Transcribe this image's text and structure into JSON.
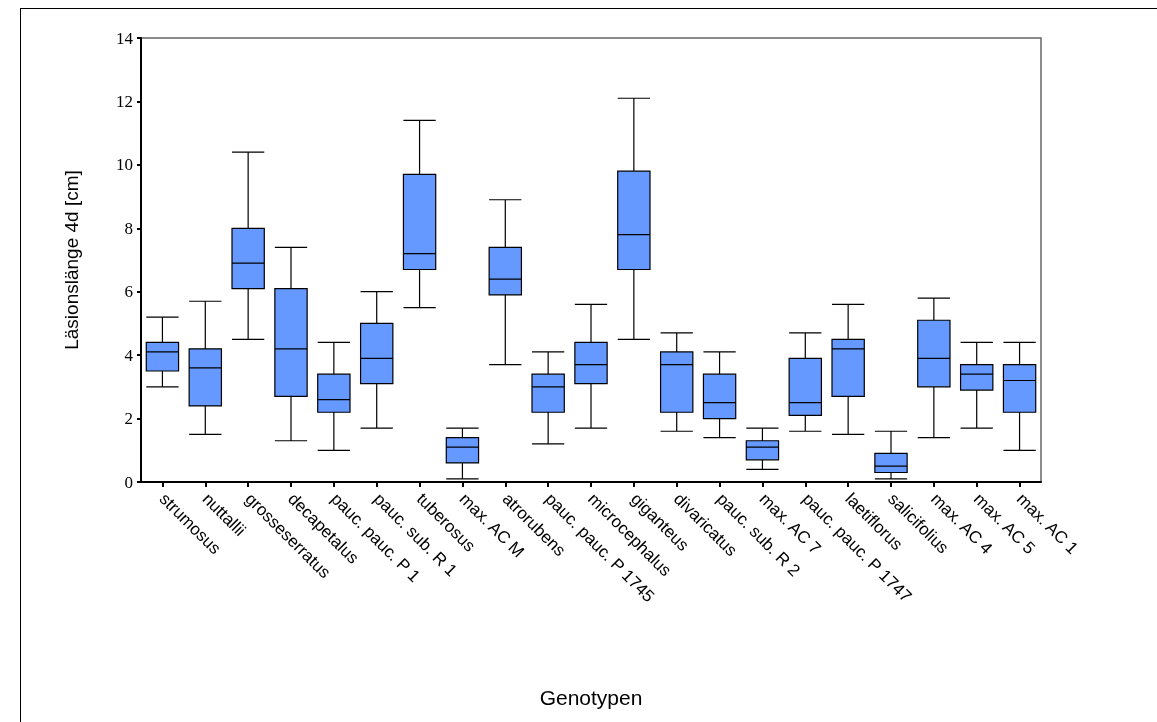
{
  "chart_data": {
    "type": "box",
    "xlabel": "Genotypen",
    "ylabel": "Läsionslänge 4d [cm]",
    "color": "#6699ff",
    "categories": [
      "strumosus",
      "nuttallii",
      "grosseserratus",
      "decapetalus",
      "pauc. pauc. P 1",
      "pauc. sub. R 1",
      "tuberosus",
      "max. AC M",
      "atrorubens",
      "pauc. pauc. P 1745",
      "microcephalus",
      "giganteus",
      "divaricatus",
      "pauc. sub. R 2",
      "max. AC 7",
      "pauc. pauc. P 1747",
      "laetiflorus",
      "salicifolius",
      "max. AC 4",
      "max. AC 5",
      "max. AC 1"
    ],
    "boxes": [
      {
        "low": 3.0,
        "q1": 3.5,
        "median": 4.1,
        "q3": 4.4,
        "high": 5.2
      },
      {
        "low": 1.5,
        "q1": 2.4,
        "median": 3.6,
        "q3": 4.2,
        "high": 5.7
      },
      {
        "low": 4.5,
        "q1": 6.1,
        "median": 6.9,
        "q3": 8.0,
        "high": 10.4
      },
      {
        "low": 1.3,
        "q1": 2.7,
        "median": 4.2,
        "q3": 6.1,
        "high": 7.4
      },
      {
        "low": 1.0,
        "q1": 2.2,
        "median": 2.6,
        "q3": 3.4,
        "high": 4.4
      },
      {
        "low": 1.7,
        "q1": 3.1,
        "median": 3.9,
        "q3": 5.0,
        "high": 6.0
      },
      {
        "low": 5.5,
        "q1": 6.7,
        "median": 7.2,
        "q3": 9.7,
        "high": 11.4
      },
      {
        "low": 0.1,
        "q1": 0.6,
        "median": 1.1,
        "q3": 1.4,
        "high": 1.7
      },
      {
        "low": 3.7,
        "q1": 5.9,
        "median": 6.4,
        "q3": 7.4,
        "high": 8.9
      },
      {
        "low": 1.2,
        "q1": 2.2,
        "median": 3.0,
        "q3": 3.4,
        "high": 4.1
      },
      {
        "low": 1.7,
        "q1": 3.1,
        "median": 3.7,
        "q3": 4.4,
        "high": 5.6
      },
      {
        "low": 4.5,
        "q1": 6.7,
        "median": 7.8,
        "q3": 9.8,
        "high": 12.1
      },
      {
        "low": 1.6,
        "q1": 2.2,
        "median": 3.7,
        "q3": 4.1,
        "high": 4.7
      },
      {
        "low": 1.4,
        "q1": 2.0,
        "median": 2.5,
        "q3": 3.4,
        "high": 4.1
      },
      {
        "low": 0.4,
        "q1": 0.7,
        "median": 1.1,
        "q3": 1.3,
        "high": 1.7
      },
      {
        "low": 1.6,
        "q1": 2.1,
        "median": 2.5,
        "q3": 3.9,
        "high": 4.7
      },
      {
        "low": 1.5,
        "q1": 2.7,
        "median": 4.2,
        "q3": 4.5,
        "high": 5.6
      },
      {
        "low": 0.1,
        "q1": 0.3,
        "median": 0.5,
        "q3": 0.9,
        "high": 1.6
      },
      {
        "low": 1.4,
        "q1": 3.0,
        "median": 3.9,
        "q3": 5.1,
        "high": 5.8
      },
      {
        "low": 1.7,
        "q1": 2.9,
        "median": 3.4,
        "q3": 3.7,
        "high": 4.4
      },
      {
        "low": 1.0,
        "q1": 2.2,
        "median": 3.2,
        "q3": 3.7,
        "high": 4.4
      }
    ],
    "ylim": [
      0,
      14
    ],
    "yticks": [
      0,
      2,
      4,
      6,
      8,
      10,
      12,
      14
    ]
  }
}
